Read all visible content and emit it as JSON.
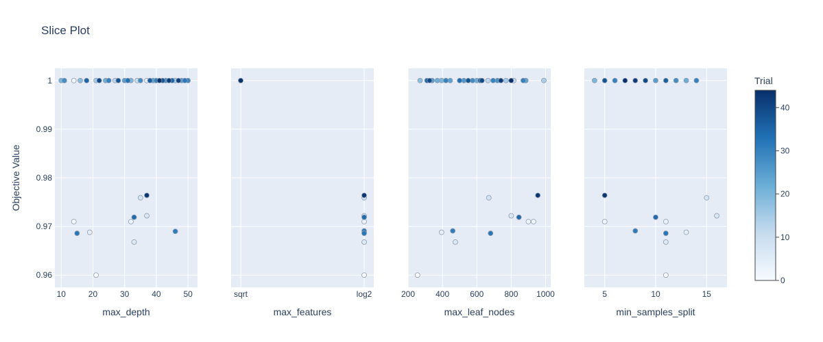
{
  "chart_data": {
    "type": "scatter",
    "title": "Slice Plot",
    "ylabel": "Objective Value",
    "ylim": [
      0.9575,
      1.0025
    ],
    "yticks": [
      0.96,
      0.97,
      0.98,
      0.99,
      1
    ],
    "ytick_labels": [
      "0.96",
      "0.97",
      "0.98",
      "0.99",
      "1"
    ],
    "colorbar": {
      "title": "Trial",
      "range": [
        0,
        44
      ],
      "ticks": [
        0,
        10,
        20,
        30,
        40
      ],
      "tick_labels": [
        "0",
        "10",
        "20",
        "30",
        "40"
      ],
      "colorscale": [
        "#f7fbff",
        "#c6dbef",
        "#6baed6",
        "#2171b5",
        "#08306b"
      ]
    },
    "grid": true,
    "panels": [
      {
        "xlabel": "max_depth",
        "xtype": "linear",
        "xlim": [
          8,
          53
        ],
        "xticks": [
          10,
          20,
          30,
          40,
          50
        ],
        "xtick_labels": [
          "10",
          "20",
          "30",
          "40",
          "50"
        ],
        "points": [
          {
            "x": 10,
            "y": 1,
            "trial": 20
          },
          {
            "x": 11,
            "y": 1,
            "trial": 28
          },
          {
            "x": 14,
            "y": 1,
            "trial": 2
          },
          {
            "x": 16,
            "y": 1,
            "trial": 18
          },
          {
            "x": 18,
            "y": 1,
            "trial": 35
          },
          {
            "x": 21,
            "y": 1,
            "trial": 15
          },
          {
            "x": 22,
            "y": 1,
            "trial": 40
          },
          {
            "x": 24,
            "y": 1,
            "trial": 22
          },
          {
            "x": 25,
            "y": 1,
            "trial": 30
          },
          {
            "x": 27,
            "y": 1,
            "trial": 12
          },
          {
            "x": 28,
            "y": 1,
            "trial": 38
          },
          {
            "x": 30,
            "y": 1,
            "trial": 25
          },
          {
            "x": 31,
            "y": 1,
            "trial": 33
          },
          {
            "x": 32,
            "y": 1,
            "trial": 20
          },
          {
            "x": 34,
            "y": 1,
            "trial": 10
          },
          {
            "x": 35,
            "y": 1,
            "trial": 28
          },
          {
            "x": 37,
            "y": 1,
            "trial": 5
          },
          {
            "x": 38,
            "y": 1,
            "trial": 36
          },
          {
            "x": 39,
            "y": 1,
            "trial": 24
          },
          {
            "x": 40,
            "y": 1,
            "trial": 30
          },
          {
            "x": 41,
            "y": 1,
            "trial": 44
          },
          {
            "x": 42,
            "y": 1,
            "trial": 38
          },
          {
            "x": 43,
            "y": 1,
            "trial": 27
          },
          {
            "x": 44,
            "y": 1,
            "trial": 42
          },
          {
            "x": 45,
            "y": 1,
            "trial": 35
          },
          {
            "x": 46,
            "y": 1,
            "trial": 15
          },
          {
            "x": 47,
            "y": 1,
            "trial": 41
          },
          {
            "x": 48,
            "y": 1,
            "trial": 25
          },
          {
            "x": 49,
            "y": 1,
            "trial": 32
          },
          {
            "x": 50,
            "y": 1,
            "trial": 29
          },
          {
            "x": 14,
            "y": 0.971,
            "trial": 1
          },
          {
            "x": 15,
            "y": 0.9686,
            "trial": 32
          },
          {
            "x": 19,
            "y": 0.9688,
            "trial": 4
          },
          {
            "x": 21,
            "y": 0.96,
            "trial": 0
          },
          {
            "x": 32,
            "y": 0.971,
            "trial": 3
          },
          {
            "x": 33,
            "y": 0.9668,
            "trial": 6
          },
          {
            "x": 33,
            "y": 0.9719,
            "trial": 34
          },
          {
            "x": 35,
            "y": 0.9759,
            "trial": 8
          },
          {
            "x": 37,
            "y": 0.9722,
            "trial": 7
          },
          {
            "x": 37,
            "y": 0.9764,
            "trial": 43
          },
          {
            "x": 46,
            "y": 0.969,
            "trial": 31
          }
        ]
      },
      {
        "xlabel": "max_features",
        "xtype": "category",
        "categories": [
          "sqrt",
          "log2"
        ],
        "xtick_labels": [
          "sqrt",
          "log2"
        ],
        "points": [
          {
            "x": "sqrt",
            "y": 1,
            "trial": 10
          },
          {
            "x": "sqrt",
            "y": 1,
            "trial": 25
          },
          {
            "x": "sqrt",
            "y": 1,
            "trial": 44
          },
          {
            "x": "log2",
            "y": 0.9764,
            "trial": 43
          },
          {
            "x": "log2",
            "y": 0.9759,
            "trial": 8
          },
          {
            "x": "log2",
            "y": 0.9722,
            "trial": 7
          },
          {
            "x": "log2",
            "y": 0.9719,
            "trial": 34
          },
          {
            "x": "log2",
            "y": 0.971,
            "trial": 3
          },
          {
            "x": "log2",
            "y": 0.9691,
            "trial": 31
          },
          {
            "x": "log2",
            "y": 0.9688,
            "trial": 4
          },
          {
            "x": "log2",
            "y": 0.9686,
            "trial": 32
          },
          {
            "x": "log2",
            "y": 0.9668,
            "trial": 6
          },
          {
            "x": "log2",
            "y": 0.96,
            "trial": 0
          }
        ]
      },
      {
        "xlabel": "max_leaf_nodes",
        "xtype": "linear",
        "xlim": [
          200,
          1030
        ],
        "xticks": [
          200,
          400,
          600,
          800,
          1000
        ],
        "xtick_labels": [
          "200",
          "400",
          "600",
          "800",
          "1000"
        ],
        "points": [
          {
            "x": 270,
            "y": 1,
            "trial": 18
          },
          {
            "x": 310,
            "y": 1,
            "trial": 35
          },
          {
            "x": 325,
            "y": 1,
            "trial": 40
          },
          {
            "x": 340,
            "y": 1,
            "trial": 25
          },
          {
            "x": 370,
            "y": 1,
            "trial": 22
          },
          {
            "x": 395,
            "y": 1,
            "trial": 20
          },
          {
            "x": 420,
            "y": 1,
            "trial": 30
          },
          {
            "x": 445,
            "y": 1,
            "trial": 24
          },
          {
            "x": 500,
            "y": 1,
            "trial": 33
          },
          {
            "x": 525,
            "y": 1,
            "trial": 26
          },
          {
            "x": 550,
            "y": 1,
            "trial": 38
          },
          {
            "x": 575,
            "y": 1,
            "trial": 28
          },
          {
            "x": 600,
            "y": 1,
            "trial": 22
          },
          {
            "x": 620,
            "y": 1,
            "trial": 36
          },
          {
            "x": 630,
            "y": 1,
            "trial": 40
          },
          {
            "x": 665,
            "y": 1,
            "trial": 12
          },
          {
            "x": 695,
            "y": 1,
            "trial": 30
          },
          {
            "x": 720,
            "y": 1,
            "trial": 27
          },
          {
            "x": 740,
            "y": 1,
            "trial": 42
          },
          {
            "x": 770,
            "y": 1,
            "trial": 15
          },
          {
            "x": 800,
            "y": 1,
            "trial": 44
          },
          {
            "x": 815,
            "y": 1,
            "trial": 10
          },
          {
            "x": 870,
            "y": 1,
            "trial": 30
          },
          {
            "x": 885,
            "y": 1,
            "trial": 24
          },
          {
            "x": 990,
            "y": 1,
            "trial": 14
          },
          {
            "x": 255,
            "y": 0.96,
            "trial": 0
          },
          {
            "x": 395,
            "y": 0.9688,
            "trial": 4
          },
          {
            "x": 460,
            "y": 0.9691,
            "trial": 31
          },
          {
            "x": 475,
            "y": 0.9668,
            "trial": 6
          },
          {
            "x": 670,
            "y": 0.9759,
            "trial": 8
          },
          {
            "x": 680,
            "y": 0.9686,
            "trial": 32
          },
          {
            "x": 800,
            "y": 0.9722,
            "trial": 7
          },
          {
            "x": 845,
            "y": 0.9719,
            "trial": 34
          },
          {
            "x": 900,
            "y": 0.971,
            "trial": 3
          },
          {
            "x": 930,
            "y": 0.971,
            "trial": 2
          },
          {
            "x": 955,
            "y": 0.9764,
            "trial": 43
          }
        ]
      },
      {
        "xlabel": "min_samples_split",
        "xtype": "linear",
        "xlim": [
          3,
          17
        ],
        "xticks": [
          5,
          10,
          15
        ],
        "xtick_labels": [
          "5",
          "10",
          "15"
        ],
        "points": [
          {
            "x": 4,
            "y": 1,
            "trial": 20
          },
          {
            "x": 5,
            "y": 1,
            "trial": 38
          },
          {
            "x": 6,
            "y": 1,
            "trial": 30
          },
          {
            "x": 7,
            "y": 1,
            "trial": 44
          },
          {
            "x": 8,
            "y": 1,
            "trial": 42
          },
          {
            "x": 9,
            "y": 1,
            "trial": 40
          },
          {
            "x": 10,
            "y": 1,
            "trial": 25
          },
          {
            "x": 11,
            "y": 1,
            "trial": 36
          },
          {
            "x": 12,
            "y": 1,
            "trial": 28
          },
          {
            "x": 13,
            "y": 1,
            "trial": 22
          },
          {
            "x": 14,
            "y": 1,
            "trial": 30
          },
          {
            "x": 5,
            "y": 0.9764,
            "trial": 43
          },
          {
            "x": 5,
            "y": 0.971,
            "trial": 2
          },
          {
            "x": 8,
            "y": 0.9691,
            "trial": 31
          },
          {
            "x": 10,
            "y": 0.9719,
            "trial": 34
          },
          {
            "x": 11,
            "y": 0.971,
            "trial": 3
          },
          {
            "x": 11,
            "y": 0.9686,
            "trial": 32
          },
          {
            "x": 11,
            "y": 0.9668,
            "trial": 6
          },
          {
            "x": 11,
            "y": 0.96,
            "trial": 0
          },
          {
            "x": 13,
            "y": 0.9688,
            "trial": 4
          },
          {
            "x": 15,
            "y": 0.9759,
            "trial": 8
          },
          {
            "x": 16,
            "y": 0.9722,
            "trial": 7
          }
        ]
      }
    ]
  }
}
